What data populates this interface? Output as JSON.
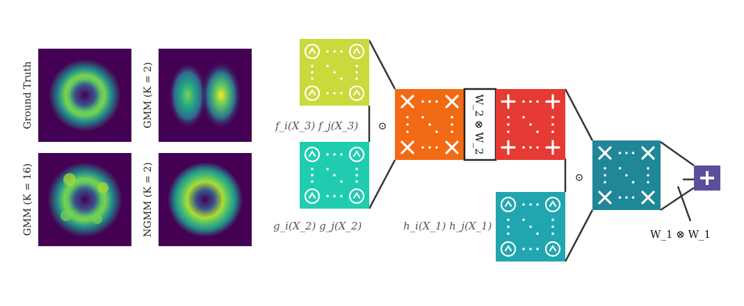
{
  "density_panels": [
    {
      "label": "Ground Truth",
      "shape": "ring"
    },
    {
      "label": "GMM (K = 2)",
      "shape": "two-blobs"
    },
    {
      "label": "GMM (K = 16)",
      "shape": "ring-bumpy"
    },
    {
      "label": "NGMM (K = 2)",
      "shape": "ring-smooth"
    }
  ],
  "circuit": {
    "product_symbol": "⊙",
    "f_label": "f_i(X_3) f_j(X_3)",
    "g_label": "g_i(X_2) g_j(X_2)",
    "h_label": "h_i(X_1) h_j(X_1)",
    "w2_label": "W_2 ⊗ W_2",
    "w1_label": "W_1 ⊗ W_1",
    "colors": {
      "f_block": "#cad93c",
      "g_block": "#20ccb0",
      "h_block": "#21a6b0",
      "times_block": "#f36a14",
      "plus_block": "#e63a34",
      "times_out_block": "#1f8797",
      "sum_node": "#5b4e9d"
    }
  }
}
